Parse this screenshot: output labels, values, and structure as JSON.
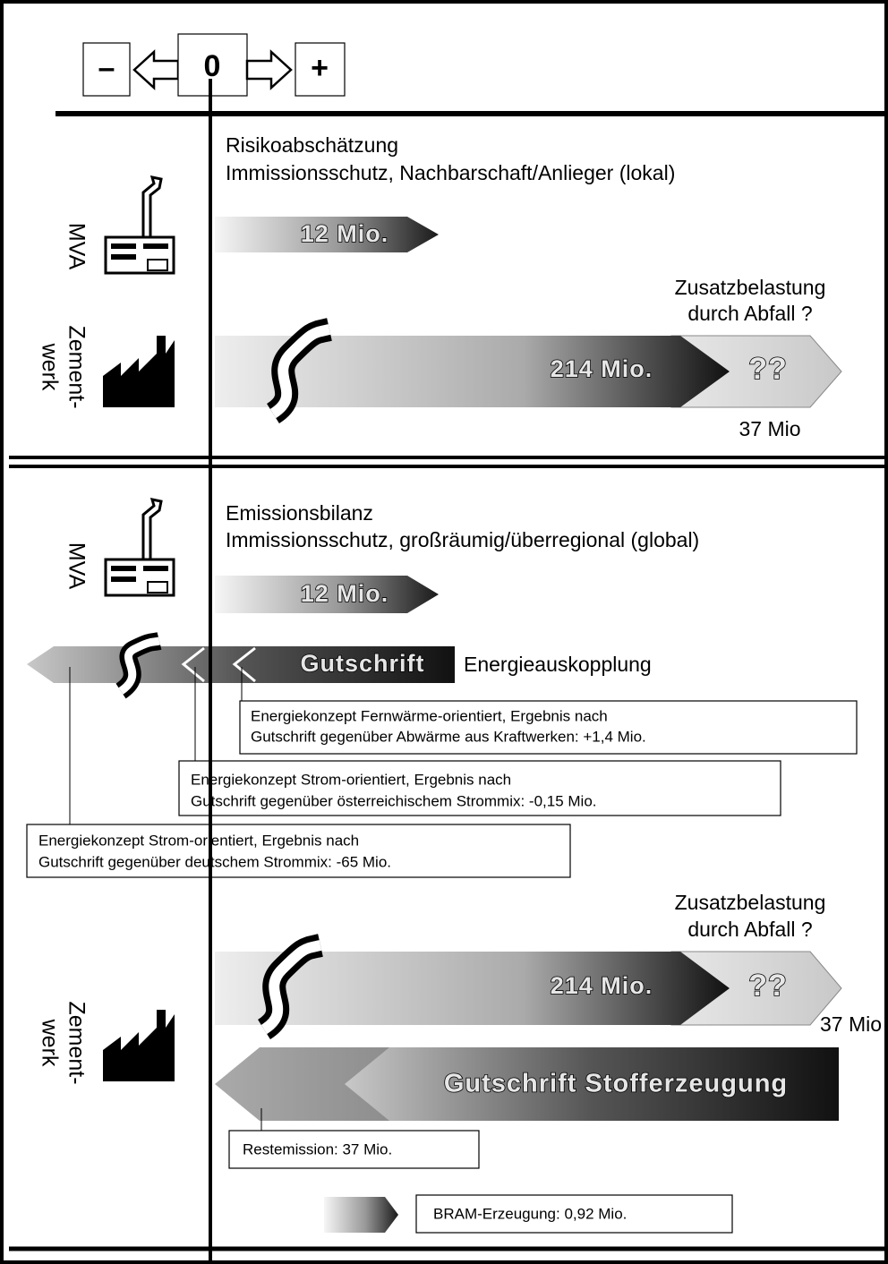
{
  "scale": {
    "minus": "–",
    "zero": "0",
    "plus": "+"
  },
  "local": {
    "title": "Risikoabschätzung",
    "subtitle": "Immissionsschutz, Nachbarschaft/Anlieger (lokal)",
    "mva": {
      "label": "MVA",
      "value": "12 Mio."
    },
    "cement": {
      "label": [
        "Zement-",
        "werk"
      ],
      "note": [
        "Zusatzbelastung",
        "durch Abfall ?"
      ],
      "value": "214 Mio.",
      "unknown": "??",
      "extra": "37 Mio"
    }
  },
  "global": {
    "title": "Emissionsbilanz",
    "subtitle": "Immissionsschutz, großräumig/überregional (global)",
    "mva": {
      "label": "MVA",
      "value": "12 Mio."
    },
    "credit": {
      "label": "Gutschrift",
      "caption": "Energieauskopplung"
    },
    "boxes": [
      [
        "Energiekonzept Fernwärme-orientiert, Ergebnis nach",
        "Gutschrift gegenüber Abwärme aus Kraftwerken: +1,4 Mio."
      ],
      [
        "Energiekonzept Strom-orientiert, Ergebnis nach",
        "Gutschrift gegenüber österreichischem Strommix: -0,15 Mio."
      ],
      [
        "Energiekonzept Strom-orientiert, Ergebnis nach",
        "Gutschrift gegenüber deutschem Strommix: -65 Mio."
      ]
    ],
    "cement": {
      "label": [
        "Zement-",
        "werk"
      ],
      "note": [
        "Zusatzbelastung",
        "durch Abfall ?"
      ],
      "value": "214 Mio.",
      "unknown": "??",
      "extra": "37 Mio",
      "credit": "Gutschrift Stofferzeugung",
      "rest": "Restemission: 37 Mio."
    }
  },
  "legend": "BRAM-Erzeugung: 0,92 Mio."
}
